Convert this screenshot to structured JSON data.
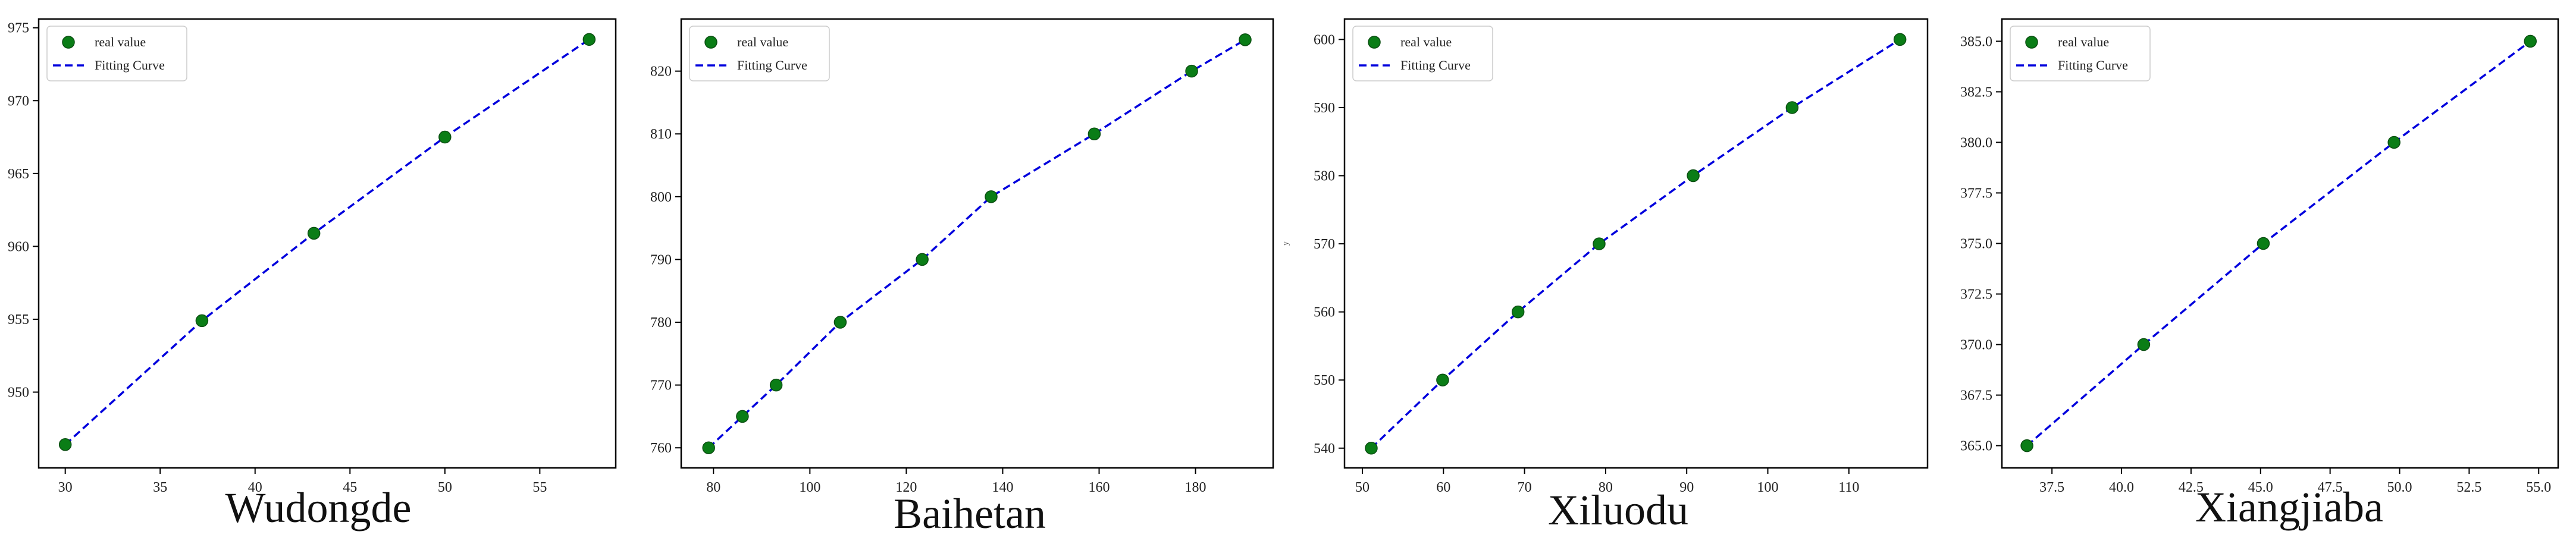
{
  "legend_labels": {
    "points": "real value",
    "line": "Fitting Curve"
  },
  "colors": {
    "points": "#0a7d16",
    "points_edge": "#0b4f12",
    "line": "#0000dd",
    "axes": "#000000"
  },
  "chart_data": [
    {
      "type": "scatter",
      "title": "Wudongde",
      "xlabel": "",
      "ylabel": "",
      "xlim": [
        28.6,
        59.0
      ],
      "ylim": [
        944.8,
        975.6
      ],
      "xticks": [
        30,
        35,
        40,
        45,
        50,
        55
      ],
      "xtick_labels": [
        "30",
        "35",
        "40",
        "45",
        "50",
        "55"
      ],
      "yticks": [
        950,
        955,
        960,
        965,
        970,
        975
      ],
      "ytick_labels": [
        "950",
        "955",
        "960",
        "965",
        "970",
        "975"
      ],
      "legend_position": "top-left",
      "series": [
        {
          "name": "real value",
          "type": "scatter",
          "x": [
            30.0,
            37.2,
            43.1,
            50.0,
            57.6
          ],
          "y": [
            946.4,
            954.9,
            960.9,
            967.5,
            974.2
          ]
        },
        {
          "name": "Fitting Curve",
          "type": "line",
          "style": "dashed",
          "x": [
            30.0,
            37.2,
            43.1,
            50.0,
            57.6
          ],
          "y": [
            946.4,
            954.9,
            960.9,
            967.5,
            974.2
          ]
        }
      ]
    },
    {
      "type": "scatter",
      "title": "Baihetan",
      "xlabel": "",
      "ylabel": "",
      "xlim": [
        73.3,
        196.1
      ],
      "ylim": [
        756.8,
        828.3
      ],
      "xticks": [
        80,
        100,
        120,
        140,
        160,
        180
      ],
      "xtick_labels": [
        "80",
        "100",
        "120",
        "140",
        "160",
        "180"
      ],
      "yticks": [
        760,
        770,
        780,
        790,
        800,
        810,
        820
      ],
      "ytick_labels": [
        "760",
        "770",
        "780",
        "790",
        "800",
        "810",
        "820"
      ],
      "legend_position": "top-left",
      "series": [
        {
          "name": "real value",
          "type": "scatter",
          "x": [
            79.0,
            86.0,
            93.0,
            106.3,
            123.3,
            137.6,
            159.0,
            179.2,
            190.3
          ],
          "y": [
            760,
            765,
            770,
            780,
            790,
            800,
            810,
            820,
            825
          ]
        },
        {
          "name": "Fitting Curve",
          "type": "line",
          "style": "dashed",
          "x": [
            79.0,
            86.0,
            93.0,
            106.3,
            123.3,
            137.6,
            159.0,
            179.2,
            190.3
          ],
          "y": [
            760,
            765,
            770,
            780,
            790,
            800,
            810,
            820,
            825
          ]
        }
      ]
    },
    {
      "type": "scatter",
      "title": "Xiluodu",
      "xlabel": "_",
      "ylabel": "y",
      "xlim": [
        47.8,
        119.7
      ],
      "ylim": [
        537.1,
        603.0
      ],
      "xticks": [
        50,
        60,
        70,
        80,
        90,
        100,
        110
      ],
      "xtick_labels": [
        "50",
        "60",
        "70",
        "80",
        "90",
        "100",
        "110"
      ],
      "yticks": [
        540,
        550,
        560,
        570,
        580,
        590,
        600
      ],
      "ytick_labels": [
        "540",
        "550",
        "560",
        "570",
        "580",
        "590",
        "600"
      ],
      "legend_position": "top-left",
      "series": [
        {
          "name": "real value",
          "type": "scatter",
          "x": [
            51.1,
            59.9,
            69.2,
            79.2,
            90.8,
            103.0,
            116.3
          ],
          "y": [
            540,
            550,
            560,
            570,
            580,
            590,
            600
          ]
        },
        {
          "name": "Fitting Curve",
          "type": "line",
          "style": "dashed",
          "x": [
            51.1,
            59.9,
            69.2,
            79.2,
            90.8,
            103.0,
            116.3
          ],
          "y": [
            540,
            550,
            560,
            570,
            580,
            590,
            600
          ]
        }
      ]
    },
    {
      "type": "scatter",
      "title": "Xiangjiaba",
      "xlabel": "",
      "ylabel": "",
      "xlim": [
        35.7,
        55.7
      ],
      "ylim": [
        363.9,
        386.1
      ],
      "xticks": [
        37.5,
        40.0,
        42.5,
        45.0,
        47.5,
        50.0,
        52.5,
        55.0
      ],
      "xtick_labels": [
        "37.5",
        "40.0",
        "42.5",
        "45.0",
        "47.5",
        "50.0",
        "52.5",
        "55.0"
      ],
      "yticks": [
        365.0,
        367.5,
        370.0,
        372.5,
        375.0,
        377.5,
        380.0,
        382.5,
        385.0
      ],
      "ytick_labels": [
        "365.0",
        "367.5",
        "370.0",
        "372.5",
        "375.0",
        "377.5",
        "380.0",
        "382.5",
        "385.0"
      ],
      "legend_position": "top-left",
      "series": [
        {
          "name": "real value",
          "type": "scatter",
          "x": [
            36.6,
            40.8,
            45.1,
            49.8,
            54.7
          ],
          "y": [
            365.0,
            370.0,
            375.0,
            380.0,
            385.0
          ]
        },
        {
          "name": "Fitting Curve",
          "type": "line",
          "style": "dashed",
          "x": [
            36.6,
            40.8,
            45.1,
            49.8,
            54.7
          ],
          "y": [
            365.0,
            370.0,
            375.0,
            380.0,
            385.0
          ]
        }
      ]
    }
  ]
}
